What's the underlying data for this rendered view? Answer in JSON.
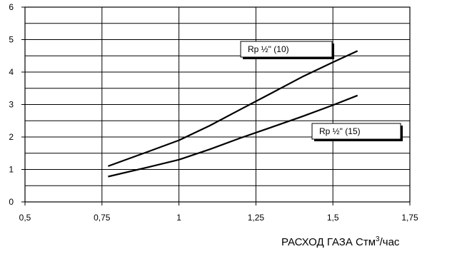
{
  "chart_data": {
    "type": "line",
    "title": "",
    "xlabel_parts": [
      "РАСХОД ГАЗА Стм",
      "3",
      "/час"
    ],
    "ylabel": "",
    "xlim": [
      0.5,
      1.75
    ],
    "ylim": [
      0,
      6
    ],
    "x_ticks": [
      "0,5",
      "0,75",
      "1",
      "1,25",
      "1,5",
      "1,75"
    ],
    "x_tick_values": [
      0.5,
      0.75,
      1,
      1.25,
      1.5,
      1.75
    ],
    "y_ticks": [
      "0",
      "1",
      "2",
      "3",
      "4",
      "5",
      "6"
    ],
    "y_tick_values": [
      0,
      1,
      2,
      3,
      4,
      5,
      6
    ],
    "grid": true,
    "series": [
      {
        "name": "Rp ½\" (10)",
        "x": [
          0.77,
          0.9,
          1.0,
          1.1,
          1.2,
          1.3,
          1.4,
          1.5,
          1.58
        ],
        "y": [
          1.1,
          1.55,
          1.9,
          2.35,
          2.85,
          3.35,
          3.85,
          4.3,
          4.65
        ]
      },
      {
        "name": "Rp ½\" (15)",
        "x": [
          0.77,
          0.9,
          1.0,
          1.1,
          1.2,
          1.3,
          1.4,
          1.5,
          1.58
        ],
        "y": [
          0.78,
          1.07,
          1.3,
          1.62,
          1.97,
          2.3,
          2.63,
          2.98,
          3.28
        ]
      }
    ]
  }
}
